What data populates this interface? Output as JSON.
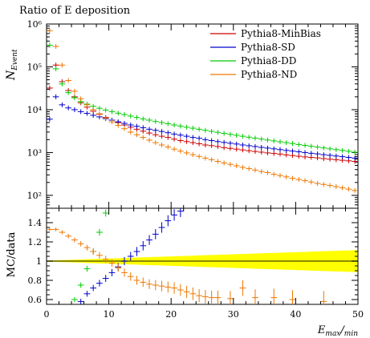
{
  "chart_data": {
    "type": "scatter",
    "title": "Ratio of E deposition",
    "xlabel_main": "E",
    "xlabel_sub1": "max",
    "xlabel_sep": "/",
    "xlabel_sub2": "min",
    "ylabel_main": "N",
    "ylabel_sub": "Event",
    "ylabel_ratio": "MC/data",
    "xlim": [
      0,
      50
    ],
    "top_ylim": [
      50,
      1000000
    ],
    "top_yscale": "log",
    "top_yticks": [
      {
        "v": 100,
        "label": "10²"
      },
      {
        "v": 1000,
        "label": "10³"
      },
      {
        "v": 10000,
        "label": "10⁴"
      },
      {
        "v": 100000,
        "label": "10⁵"
      },
      {
        "v": 1000000,
        "label": "10⁶"
      }
    ],
    "ratio_ylim": [
      0.55,
      1.55
    ],
    "ratio_yticks": [
      "0.6",
      "0.8",
      "1",
      "1.2",
      "1.4"
    ],
    "xticks": [
      "0",
      "10",
      "20",
      "30",
      "40",
      "50"
    ],
    "legend_position": "top-right",
    "series": [
      {
        "name": "Pythia8-MinBias",
        "color": "#cc0000",
        "x": [
          0.5,
          1.5,
          2.5,
          3.5,
          4.5,
          5.5,
          6.5,
          7.5,
          8.5,
          9.5,
          10.5,
          11.5,
          12.5,
          13.5,
          14.5,
          15.5,
          16.5,
          17.5,
          18.5,
          19.5,
          20.5,
          21.5,
          22.5,
          23.5,
          24.5,
          25.5,
          26.5,
          27.5,
          28.5,
          29.5,
          30.5,
          31.5,
          32.5,
          33.5,
          34.5,
          35.5,
          36.5,
          37.5,
          38.5,
          39.5,
          40.5,
          41.5,
          42.5,
          43.5,
          44.5,
          45.5,
          46.5,
          47.5,
          48.5,
          49.5
        ],
        "y": [
          32000,
          110000,
          45000,
          28000,
          20000,
          14500,
          11500,
          9200,
          7800,
          6600,
          5700,
          5000,
          4400,
          3900,
          3500,
          3150,
          2850,
          2600,
          2400,
          2250,
          2050,
          1900,
          1800,
          1700,
          1600,
          1500,
          1450,
          1380,
          1300,
          1250,
          1200,
          1150,
          1100,
          1060,
          1020,
          980,
          950,
          920,
          880,
          850,
          820,
          790,
          770,
          750,
          720,
          700,
          680,
          660,
          640,
          620
        ]
      },
      {
        "name": "Pythia8-SD",
        "color": "#0000cc",
        "x": [
          0.5,
          1.5,
          2.5,
          3.5,
          4.5,
          5.5,
          6.5,
          7.5,
          8.5,
          9.5,
          10.5,
          11.5,
          12.5,
          13.5,
          14.5,
          15.5,
          16.5,
          17.5,
          18.5,
          19.5,
          20.5,
          21.5,
          22.5,
          23.5,
          24.5,
          25.5,
          26.5,
          27.5,
          28.5,
          29.5,
          30.5,
          31.5,
          32.5,
          33.5,
          34.5,
          35.5,
          36.5,
          37.5,
          38.5,
          39.5,
          40.5,
          41.5,
          42.5,
          43.5,
          44.5,
          45.5,
          46.5,
          47.5,
          48.5,
          49.5
        ],
        "y": [
          6000,
          20000,
          13000,
          11000,
          10000,
          9000,
          8200,
          7400,
          6800,
          6200,
          5700,
          5200,
          4800,
          4400,
          4100,
          3800,
          3500,
          3300,
          3100,
          2900,
          2700,
          2550,
          2400,
          2250,
          2150,
          2000,
          1900,
          1800,
          1720,
          1650,
          1580,
          1500,
          1440,
          1380,
          1320,
          1270,
          1220,
          1170,
          1120,
          1080,
          1040,
          1000,
          960,
          930,
          890,
          860,
          830,
          800,
          770,
          740
        ]
      },
      {
        "name": "Pythia8-DD",
        "color": "#00cc00",
        "x": [
          0.5,
          1.5,
          2.5,
          3.5,
          4.5,
          5.5,
          6.5,
          7.5,
          8.5,
          9.5,
          10.5,
          11.5,
          12.5,
          13.5,
          14.5,
          15.5,
          16.5,
          17.5,
          18.5,
          19.5,
          20.5,
          21.5,
          22.5,
          23.5,
          24.5,
          25.5,
          26.5,
          27.5,
          28.5,
          29.5,
          30.5,
          31.5,
          32.5,
          33.5,
          34.5,
          35.5,
          36.5,
          37.5,
          38.5,
          39.5,
          40.5,
          41.5,
          42.5,
          43.5,
          44.5,
          45.5,
          46.5,
          47.5,
          48.5,
          49.5
        ],
        "y": [
          320000,
          90000,
          40000,
          25000,
          19000,
          15500,
          13500,
          12000,
          10800,
          9800,
          9000,
          8300,
          7700,
          7100,
          6600,
          6100,
          5700,
          5300,
          5000,
          4700,
          4400,
          4150,
          3900,
          3700,
          3500,
          3300,
          3120,
          2960,
          2800,
          2660,
          2530,
          2400,
          2280,
          2170,
          2060,
          1960,
          1870,
          1780,
          1700,
          1620,
          1540,
          1470,
          1400,
          1340,
          1280,
          1220,
          1170,
          1120,
          1070,
          1020
        ]
      },
      {
        "name": "Pythia8-ND",
        "color": "#ee7700",
        "x": [
          0.5,
          1.5,
          2.5,
          3.5,
          4.5,
          5.5,
          6.5,
          7.5,
          8.5,
          9.5,
          10.5,
          11.5,
          12.5,
          13.5,
          14.5,
          15.5,
          16.5,
          17.5,
          18.5,
          19.5,
          20.5,
          21.5,
          22.5,
          23.5,
          24.5,
          25.5,
          26.5,
          27.5,
          28.5,
          29.5,
          30.5,
          31.5,
          32.5,
          33.5,
          34.5,
          35.5,
          36.5,
          37.5,
          38.5,
          39.5,
          40.5,
          41.5,
          42.5,
          43.5,
          44.5,
          45.5,
          46.5,
          47.5,
          48.5,
          49.5
        ],
        "y": [
          700000,
          300000,
          110000,
          48000,
          27000,
          18000,
          13000,
          10000,
          8000,
          6400,
          5200,
          4300,
          3600,
          3000,
          2600,
          2250,
          1950,
          1700,
          1500,
          1350,
          1200,
          1080,
          980,
          890,
          810,
          740,
          680,
          620,
          570,
          530,
          490,
          450,
          420,
          390,
          360,
          340,
          310,
          290,
          270,
          250,
          235,
          220,
          205,
          190,
          180,
          170,
          160,
          150,
          140,
          130
        ]
      }
    ],
    "ratio": [
      {
        "series": "Pythia8-MinBias",
        "x": [],
        "y": []
      },
      {
        "series": "Pythia8-SD",
        "color": "#0000cc",
        "x": [
          5.5,
          6.5,
          7.5,
          8.5,
          9.5,
          10.5,
          11.5,
          12.5,
          13.5,
          14.5,
          15.5,
          16.5,
          17.5,
          18.5,
          19.5,
          20.5,
          21.5
        ],
        "y": [
          0.58,
          0.66,
          0.72,
          0.77,
          0.82,
          0.88,
          0.94,
          1.0,
          1.05,
          1.1,
          1.16,
          1.22,
          1.28,
          1.35,
          1.42,
          1.48,
          1.52
        ]
      },
      {
        "series": "Pythia8-DD",
        "color": "#00cc00",
        "x": [
          4.5,
          5.5,
          6.5,
          7.5,
          8.5,
          9.5
        ],
        "y": [
          0.6,
          0.75,
          0.92,
          1.1,
          1.3,
          1.5
        ]
      },
      {
        "series": "Pythia8-ND",
        "color": "#ee7700",
        "x": [
          0.5,
          1.5,
          2.5,
          3.5,
          4.5,
          5.5,
          6.5,
          7.5,
          8.5,
          9.5,
          10.5,
          11.5,
          12.5,
          13.5,
          14.5,
          15.5,
          16.5,
          17.5,
          18.5,
          19.5,
          20.5,
          21.5,
          22.5,
          23.5,
          24.5,
          25.5,
          26.5,
          27.5,
          29.5,
          31.5,
          33.5,
          36.5,
          39.5,
          44.5
        ],
        "y": [
          1.33,
          1.33,
          1.3,
          1.26,
          1.22,
          1.18,
          1.14,
          1.1,
          1.06,
          1.02,
          0.98,
          0.93,
          0.88,
          0.84,
          0.8,
          0.78,
          0.76,
          0.75,
          0.74,
          0.73,
          0.72,
          0.7,
          0.68,
          0.66,
          0.64,
          0.63,
          0.62,
          0.62,
          0.61,
          0.72,
          0.62,
          0.62,
          0.6,
          0.58
        ]
      }
    ],
    "data_band_color": "#ffff00",
    "data_line_color": "#666600"
  }
}
